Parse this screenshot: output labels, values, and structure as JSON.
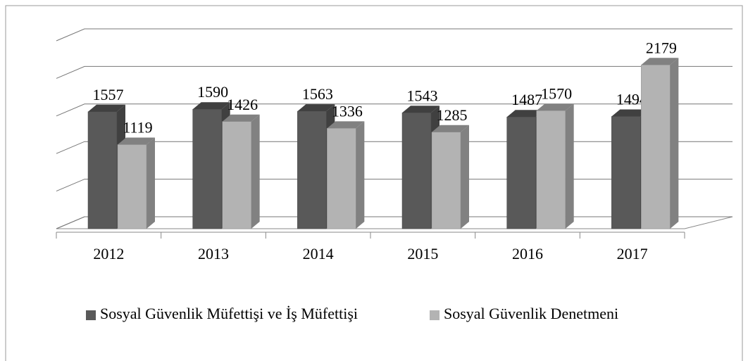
{
  "chart_data": {
    "type": "bar3d",
    "categories": [
      "2012",
      "2013",
      "2014",
      "2015",
      "2016",
      "2017"
    ],
    "series": [
      {
        "name": "Sosyal Güvenlik Müfettişi ve İş Müfettişi",
        "color": "#595959",
        "values": [
          1557,
          1590,
          1563,
          1543,
          1487,
          1494
        ]
      },
      {
        "name": "Sosyal Güvenlik Denetmeni",
        "color": "#b3b3b3",
        "values": [
          1119,
          1426,
          1336,
          1285,
          1570,
          2179
        ]
      }
    ],
    "ylim": [
      0,
      2500
    ],
    "yticks": [
      0,
      500,
      1000,
      1500,
      2000,
      2500
    ],
    "grid": true,
    "legend": "bottom"
  }
}
